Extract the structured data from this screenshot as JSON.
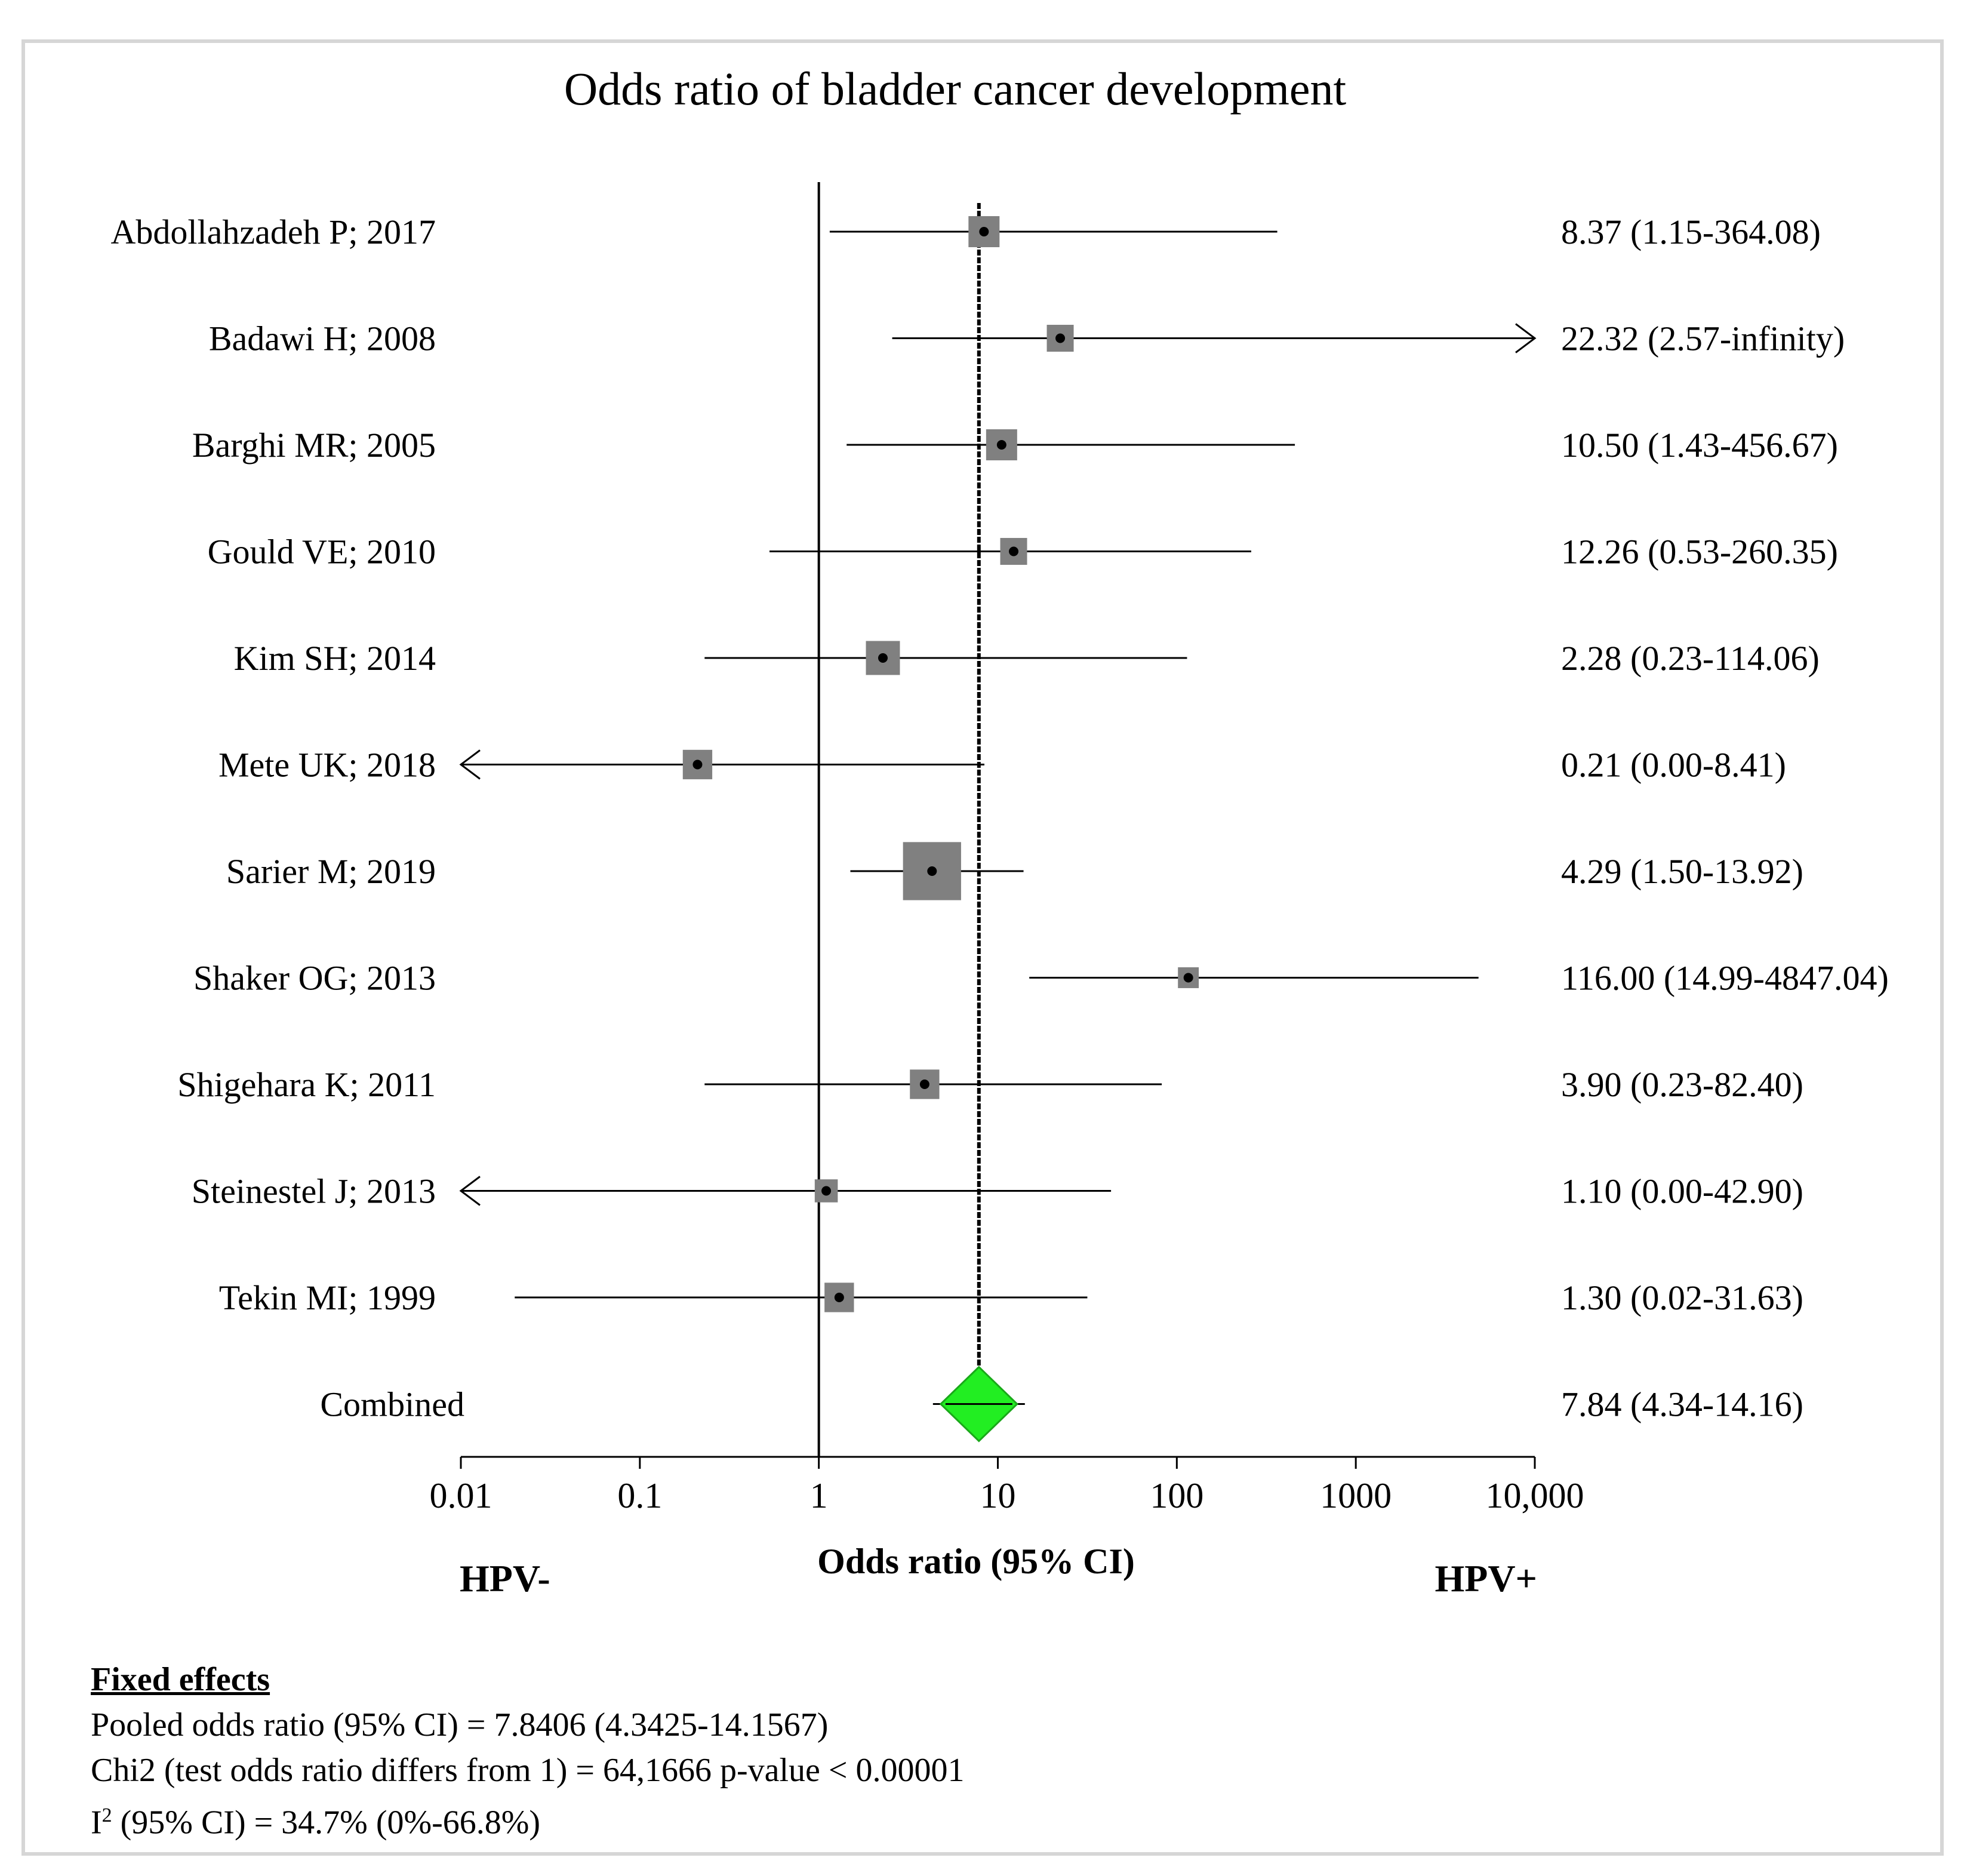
{
  "chart_data": {
    "type": "forest",
    "title": "Odds ratio of bladder cancer development",
    "xlabel": "Odds ratio (95% CI)",
    "x_scale": "log",
    "xlim": [
      0.01,
      10000
    ],
    "x_ticks": [
      0.01,
      0.1,
      1,
      10,
      100,
      1000,
      10000
    ],
    "x_tick_labels": [
      "0.01",
      "0.1",
      "1",
      "10",
      "100",
      "1000",
      "10,000"
    ],
    "left_annotation": "HPV-",
    "right_annotation": "HPV+",
    "reference_line": 1,
    "studies": [
      {
        "label": "Abdollahzadeh P; 2017",
        "or": 8.37,
        "lower": 1.15,
        "upper": 364.08,
        "text": "8.37 (1.15-364.08)",
        "weight": 1.0,
        "arrow_left": false,
        "arrow_right": false
      },
      {
        "label": "Badawi H; 2008",
        "or": 22.32,
        "lower": 2.57,
        "upper": null,
        "text": "22.32 (2.57-infinity)",
        "weight": 0.75,
        "arrow_left": false,
        "arrow_right": true
      },
      {
        "label": "Barghi MR; 2005",
        "or": 10.5,
        "lower": 1.43,
        "upper": 456.67,
        "text": "10.50 (1.43-456.67)",
        "weight": 1.0,
        "arrow_left": false,
        "arrow_right": false
      },
      {
        "label": "Gould VE; 2010",
        "or": 12.26,
        "lower": 0.53,
        "upper": 260.35,
        "text": "12.26 (0.53-260.35)",
        "weight": 0.75,
        "arrow_left": false,
        "arrow_right": false
      },
      {
        "label": "Kim SH; 2014",
        "or": 2.28,
        "lower": 0.23,
        "upper": 114.06,
        "text": "2.28 (0.23-114.06)",
        "weight": 1.2,
        "arrow_left": false,
        "arrow_right": false
      },
      {
        "label": "Mete UK; 2018",
        "or": 0.21,
        "lower": 0.0,
        "upper": 8.41,
        "text": "0.21 (0.00-8.41)",
        "weight": 0.9,
        "arrow_left": true,
        "arrow_right": false
      },
      {
        "label": "Sarier M; 2019",
        "or": 4.29,
        "lower": 1.5,
        "upper": 13.92,
        "text": "4.29 (1.50-13.92)",
        "weight": 3.5,
        "arrow_left": false,
        "arrow_right": false
      },
      {
        "label": "Shaker OG; 2013",
        "or": 116.0,
        "lower": 14.99,
        "upper": 4847.04,
        "text": "116.00 (14.99-4847.04)",
        "weight": 0.45,
        "arrow_left": false,
        "arrow_right": false
      },
      {
        "label": "Shigehara K; 2011",
        "or": 3.9,
        "lower": 0.23,
        "upper": 82.4,
        "text": "3.90 (0.23-82.40)",
        "weight": 0.9,
        "arrow_left": false,
        "arrow_right": false
      },
      {
        "label": "Steinestel J; 2013",
        "or": 1.1,
        "lower": 0.0,
        "upper": 42.9,
        "text": "1.10 (0.00-42.90)",
        "weight": 0.55,
        "arrow_left": true,
        "arrow_right": false
      },
      {
        "label": "Tekin MI; 1999",
        "or": 1.3,
        "lower": 0.02,
        "upper": 31.63,
        "text": "1.30 (0.02-31.63)",
        "weight": 0.9,
        "arrow_left": false,
        "arrow_right": false
      }
    ],
    "combined": {
      "label": "Combined",
      "or": 7.84,
      "lower": 4.34,
      "upper": 14.16,
      "text": "7.84 (4.34-14.16)"
    },
    "colors": {
      "box": "#808080",
      "diamond": "#22ee22",
      "diamond_edge": "#1aa81a",
      "line": "#000000"
    }
  },
  "stats": {
    "heading": "Fixed effects",
    "pooled": "Pooled odds ratio (95% CI) = 7.8406 (4.3425-14.1567)",
    "chi2": "Chi2 (test odds ratio differs from 1) = 64,1666 p-value < 0.00001",
    "i2_prefix": "I",
    "i2_sup": "2",
    "i2_rest": " (95% CI) = 34.7% (0%-66.8%)"
  }
}
